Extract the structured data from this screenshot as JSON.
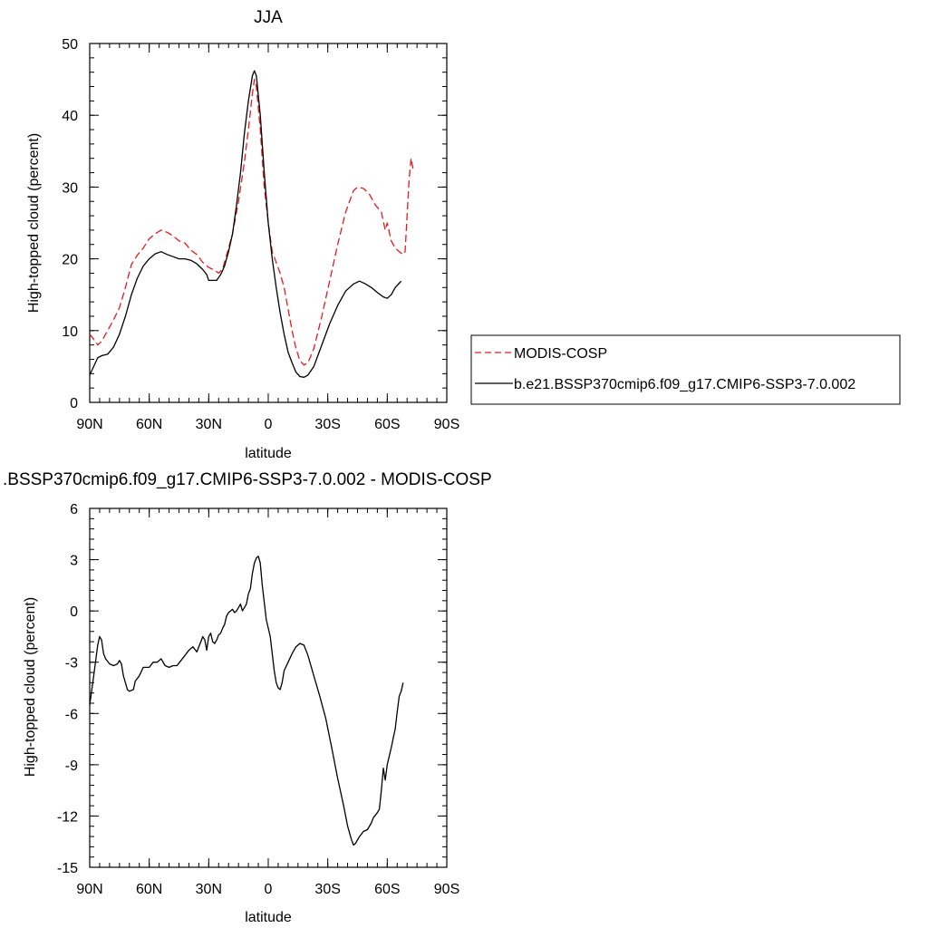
{
  "chart_data": [
    {
      "type": "line",
      "title": "JJA",
      "xlabel": "latitude",
      "ylabel": "High-topped cloud (percent)",
      "xlim": [
        90,
        -90
      ],
      "ylim": [
        0,
        50
      ],
      "x_ticks": [
        90,
        60,
        30,
        0,
        -30,
        -60,
        -90
      ],
      "x_tick_labels": [
        "90N",
        "60N",
        "30N",
        "0",
        "30S",
        "60S",
        "90S"
      ],
      "y_ticks": [
        0,
        10,
        20,
        30,
        40,
        50
      ],
      "y_tick_labels": [
        "0",
        "10",
        "20",
        "30",
        "40",
        "50"
      ],
      "legend_position": "right",
      "series": [
        {
          "name": "MODIS-COSP",
          "color": "#e41a1c",
          "dash": "dashed",
          "points": [
            [
              90,
              9.5
            ],
            [
              88,
              8.8
            ],
            [
              86,
              8.0
            ],
            [
              84,
              8.5
            ],
            [
              81,
              10
            ],
            [
              78,
              11.5
            ],
            [
              75,
              13.2
            ],
            [
              72,
              16
            ],
            [
              69,
              19.2
            ],
            [
              66,
              20.5
            ],
            [
              63,
              21.5
            ],
            [
              60,
              22.8
            ],
            [
              57,
              23.5
            ],
            [
              54,
              24
            ],
            [
              51,
              23.7
            ],
            [
              48,
              23.2
            ],
            [
              45,
              22.5
            ],
            [
              42,
              22.2
            ],
            [
              39,
              21.2
            ],
            [
              36,
              20.6
            ],
            [
              33,
              19.5
            ],
            [
              30,
              18.8
            ],
            [
              27,
              18.4
            ],
            [
              25,
              18
            ],
            [
              23,
              18.6
            ],
            [
              21,
              20.5
            ],
            [
              18,
              23.5
            ],
            [
              15,
              28
            ],
            [
              12,
              33.5
            ],
            [
              10,
              38
            ],
            [
              8,
              43
            ],
            [
              7,
              45
            ],
            [
              6,
              44
            ],
            [
              4,
              38
            ],
            [
              2,
              30
            ],
            [
              0,
              25
            ],
            [
              -2,
              21
            ],
            [
              -4,
              19.5
            ],
            [
              -6,
              18
            ],
            [
              -8,
              16
            ],
            [
              -10,
              13
            ],
            [
              -12,
              10
            ],
            [
              -14,
              7.5
            ],
            [
              -16,
              5.8
            ],
            [
              -18,
              5.2
            ],
            [
              -20,
              5.5
            ],
            [
              -23,
              7.5
            ],
            [
              -27,
              12
            ],
            [
              -31,
              17
            ],
            [
              -35,
              22
            ],
            [
              -39,
              26.5
            ],
            [
              -43,
              29.5
            ],
            [
              -45,
              30
            ],
            [
              -48,
              29.8
            ],
            [
              -51,
              29
            ],
            [
              -54,
              27.5
            ],
            [
              -57,
              26.5
            ],
            [
              -59,
              24
            ],
            [
              -60,
              25
            ],
            [
              -62,
              22.5
            ],
            [
              -64,
              21.5
            ],
            [
              -66,
              21
            ],
            [
              -68,
              20.6
            ],
            [
              -69,
              21
            ],
            [
              -70,
              26
            ],
            [
              -71,
              31
            ],
            [
              -72,
              34
            ],
            [
              -73,
              32.5
            ]
          ]
        },
        {
          "name": "b.e21.BSSP370cmip6.f09_g17.CMIP6-SSP3-7.0.002",
          "color": "#000000",
          "dash": "solid",
          "points": [
            [
              90,
              3.8
            ],
            [
              88,
              5
            ],
            [
              86,
              6.2
            ],
            [
              84,
              6.5
            ],
            [
              81,
              6.7
            ],
            [
              78,
              7.7
            ],
            [
              75,
              9.5
            ],
            [
              72,
              12
            ],
            [
              69,
              15
            ],
            [
              66,
              17.3
            ],
            [
              63,
              19
            ],
            [
              60,
              20
            ],
            [
              57,
              20.7
            ],
            [
              54,
              21
            ],
            [
              51,
              20.6
            ],
            [
              48,
              20.3
            ],
            [
              45,
              20
            ],
            [
              42,
              20
            ],
            [
              39,
              19.8
            ],
            [
              36,
              19.3
            ],
            [
              33,
              18.5
            ],
            [
              31,
              17.8
            ],
            [
              30,
              17
            ],
            [
              28,
              17
            ],
            [
              26,
              17
            ],
            [
              24,
              17.8
            ],
            [
              22,
              19
            ],
            [
              20,
              21
            ],
            [
              18,
              23.5
            ],
            [
              16,
              27.5
            ],
            [
              14,
              32
            ],
            [
              12,
              37.5
            ],
            [
              10,
              42
            ],
            [
              8,
              45.5
            ],
            [
              7,
              46.2
            ],
            [
              6,
              45.5
            ],
            [
              4,
              40
            ],
            [
              2,
              32
            ],
            [
              0,
              25
            ],
            [
              -2,
              20
            ],
            [
              -4,
              16
            ],
            [
              -6,
              12.5
            ],
            [
              -8,
              9.5
            ],
            [
              -10,
              7
            ],
            [
              -12,
              5.5
            ],
            [
              -14,
              4.2
            ],
            [
              -16,
              3.6
            ],
            [
              -18,
              3.5
            ],
            [
              -20,
              3.8
            ],
            [
              -23,
              5
            ],
            [
              -27,
              8
            ],
            [
              -31,
              11
            ],
            [
              -35,
              13.5
            ],
            [
              -39,
              15.5
            ],
            [
              -43,
              16.5
            ],
            [
              -46,
              16.9
            ],
            [
              -49,
              16.5
            ],
            [
              -52,
              16
            ],
            [
              -55,
              15.3
            ],
            [
              -58,
              14.7
            ],
            [
              -60,
              14.5
            ],
            [
              -62,
              15
            ],
            [
              -64,
              16
            ],
            [
              -66,
              16.6
            ],
            [
              -67,
              16.9
            ]
          ]
        }
      ]
    },
    {
      "type": "line",
      "title": ".BSSP370cmip6.f09_g17.CMIP6-SSP3-7.0.002 - MODIS-COSP",
      "xlabel": "latitude",
      "ylabel": "High-topped cloud (percent)",
      "xlim": [
        90,
        -90
      ],
      "ylim": [
        -15,
        6
      ],
      "x_ticks": [
        90,
        60,
        30,
        0,
        -30,
        -60,
        -90
      ],
      "x_tick_labels": [
        "90N",
        "60N",
        "30N",
        "0",
        "30S",
        "60S",
        "90S"
      ],
      "y_ticks": [
        6,
        3,
        0,
        -3,
        -6,
        -9,
        -12,
        -15
      ],
      "y_tick_labels": [
        "6",
        "3",
        "0",
        "-3",
        "-6",
        "-9",
        "-12",
        "-15"
      ],
      "series": [
        {
          "color": "#000000",
          "dash": "solid",
          "points": [
            [
              90,
              -5.5
            ],
            [
              88,
              -3.8
            ],
            [
              86,
              -2
            ],
            [
              85,
              -1.5
            ],
            [
              84,
              -1.7
            ],
            [
              83,
              -2.5
            ],
            [
              82,
              -2.8
            ],
            [
              80,
              -3.1
            ],
            [
              78,
              -3.2
            ],
            [
              76,
              -3.1
            ],
            [
              75,
              -2.9
            ],
            [
              74,
              -3.1
            ],
            [
              73,
              -3.8
            ],
            [
              72,
              -4.2
            ],
            [
              71,
              -4.6
            ],
            [
              70,
              -4.7
            ],
            [
              68,
              -4.6
            ],
            [
              67,
              -4.1
            ],
            [
              65,
              -3.8
            ],
            [
              63,
              -3.3
            ],
            [
              60,
              -3.3
            ],
            [
              58,
              -3
            ],
            [
              56,
              -3
            ],
            [
              54,
              -2.8
            ],
            [
              52,
              -3.2
            ],
            [
              50,
              -3.3
            ],
            [
              48,
              -3.2
            ],
            [
              46,
              -3.2
            ],
            [
              44,
              -2.9
            ],
            [
              42,
              -2.6
            ],
            [
              40,
              -2.3
            ],
            [
              38,
              -2.1
            ],
            [
              36,
              -2.4
            ],
            [
              34,
              -1.8
            ],
            [
              33,
              -1.5
            ],
            [
              32,
              -1.7
            ],
            [
              31,
              -2.3
            ],
            [
              30,
              -1.5
            ],
            [
              29,
              -1.3
            ],
            [
              28,
              -1.8
            ],
            [
              27,
              -1.9
            ],
            [
              26,
              -1.7
            ],
            [
              25,
              -1.4
            ],
            [
              24,
              -1.3
            ],
            [
              23,
              -1
            ],
            [
              22,
              -0.8
            ],
            [
              21,
              -0.3
            ],
            [
              20,
              -0.1
            ],
            [
              19,
              0
            ],
            [
              18,
              0.1
            ],
            [
              17,
              -0.1
            ],
            [
              16,
              0
            ],
            [
              15,
              0.2
            ],
            [
              14,
              0.4
            ],
            [
              13,
              0
            ],
            [
              12,
              0.2
            ],
            [
              11,
              0.4
            ],
            [
              10,
              1
            ],
            [
              9,
              1.3
            ],
            [
              8,
              2.2
            ],
            [
              7,
              2.8
            ],
            [
              6,
              3.1
            ],
            [
              5,
              3.2
            ],
            [
              4,
              2.8
            ],
            [
              3,
              1.5
            ],
            [
              2,
              0.5
            ],
            [
              1,
              -0.5
            ],
            [
              0,
              -1
            ],
            [
              -1,
              -1.5
            ],
            [
              -2,
              -2.5
            ],
            [
              -3,
              -3.5
            ],
            [
              -4,
              -4.2
            ],
            [
              -5,
              -4.5
            ],
            [
              -6,
              -4.6
            ],
            [
              -7,
              -4.2
            ],
            [
              -8,
              -3.5
            ],
            [
              -10,
              -3
            ],
            [
              -12,
              -2.5
            ],
            [
              -14,
              -2.1
            ],
            [
              -16,
              -1.9
            ],
            [
              -18,
              -2
            ],
            [
              -20,
              -2.6
            ],
            [
              -23,
              -3.8
            ],
            [
              -26,
              -5
            ],
            [
              -29,
              -6.3
            ],
            [
              -32,
              -8
            ],
            [
              -35,
              -9.8
            ],
            [
              -38,
              -11.4
            ],
            [
              -40,
              -12.6
            ],
            [
              -42,
              -13.4
            ],
            [
              -43,
              -13.7
            ],
            [
              -44,
              -13.6
            ],
            [
              -46,
              -13.2
            ],
            [
              -48,
              -12.9
            ],
            [
              -50,
              -12.8
            ],
            [
              -52,
              -12.4
            ],
            [
              -53,
              -12.1
            ],
            [
              -55,
              -11.8
            ],
            [
              -56,
              -11.6
            ],
            [
              -57,
              -10.5
            ],
            [
              -58,
              -9.2
            ],
            [
              -59,
              -9.9
            ],
            [
              -60,
              -9
            ],
            [
              -62,
              -8
            ],
            [
              -64,
              -6.9
            ],
            [
              -65,
              -5.9
            ],
            [
              -66,
              -5
            ],
            [
              -67,
              -4.7
            ],
            [
              -68,
              -4.2
            ]
          ]
        }
      ]
    }
  ]
}
